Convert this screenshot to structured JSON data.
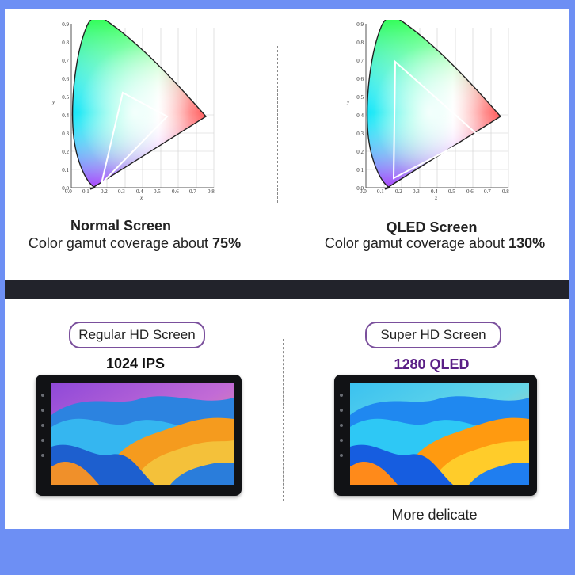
{
  "gamut": {
    "left": {
      "title": "Normal Screen",
      "sub_prefix": "Color gamut coverage about ",
      "sub_value": "75%"
    },
    "right": {
      "title": "QLED Screen",
      "sub_prefix": "Color gamut coverage about ",
      "sub_value": "130%"
    },
    "diagram": {
      "y_ticks": [
        "0.9",
        "0.8",
        "0.7",
        "0.6",
        "0.5",
        "0.4",
        "0.3",
        "0.2",
        "0.1",
        "0.0"
      ],
      "x_ticks": [
        "0.0",
        "0.1",
        "0.2",
        "0.3",
        "0.4",
        "0.5",
        "0.6",
        "0.7",
        "0.8"
      ],
      "x_label": "x",
      "y_label": "y"
    }
  },
  "screens": {
    "left": {
      "pill": "Regular HD Screen",
      "resolution": "1024 IPS",
      "resolution_color": "#111111"
    },
    "right": {
      "pill": "Super HD Screen",
      "resolution": "1280 QLED",
      "resolution_color": "#5a1f86",
      "note": "More delicate"
    }
  },
  "colors": {
    "background": "#6d8ff4",
    "band": "#22232b",
    "pill_border": "#7a4f9c"
  }
}
